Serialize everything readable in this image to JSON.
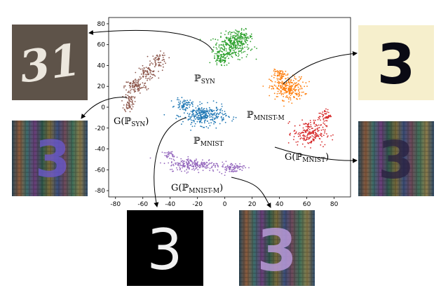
{
  "chart_data": {
    "type": "scatter",
    "title": "",
    "xlabel": "",
    "ylabel": "",
    "xlim": [
      -85,
      92
    ],
    "ylim": [
      -86,
      86
    ],
    "xticks": [
      -80,
      -60,
      -40,
      -20,
      0,
      20,
      40,
      60,
      80
    ],
    "yticks": [
      80,
      60,
      40,
      20,
      0,
      -20,
      -40,
      -60,
      -80
    ],
    "grid": false,
    "series": [
      {
        "key": "syn",
        "label_main": "ℙ",
        "label_sub": "SYN",
        "color": "#2ca02c",
        "clusters": [
          {
            "cx": 5,
            "cy": 58,
            "sx": 11,
            "sy": 10,
            "n": 240
          },
          {
            "cx": 11,
            "cy": 67,
            "sx": 8,
            "sy": 6,
            "n": 120
          },
          {
            "cx": -3,
            "cy": 46,
            "sx": 5,
            "sy": 6,
            "n": 70
          }
        ]
      },
      {
        "key": "gsyn",
        "label_main": "G(ℙ",
        "label_sub": "SYN",
        "label_close": ")",
        "color": "#8c564b",
        "clusters": [
          {
            "cx": -48,
            "cy": 45,
            "sx": 5,
            "sy": 6,
            "n": 60
          },
          {
            "cx": -57,
            "cy": 33,
            "sx": 6,
            "sy": 5,
            "n": 80
          },
          {
            "cx": -65,
            "cy": 20,
            "sx": 7,
            "sy": 6,
            "n": 110
          },
          {
            "cx": -70,
            "cy": 5,
            "sx": 3,
            "sy": 8,
            "n": 70
          }
        ]
      },
      {
        "key": "mnistm",
        "label_main": "ℙ",
        "label_sub": "MNIST-M",
        "color": "#ff7f0e",
        "clusters": [
          {
            "cx": 46,
            "cy": 18,
            "sx": 10,
            "sy": 9,
            "n": 260
          },
          {
            "cx": 41,
            "cy": 31,
            "sx": 5,
            "sy": 4,
            "n": 60
          }
        ]
      },
      {
        "key": "mnist",
        "label_main": "ℙ",
        "label_sub": "MNIST",
        "color": "#1f77b4",
        "clusters": [
          {
            "cx": -15,
            "cy": -8,
            "sx": 13,
            "sy": 8,
            "n": 300
          },
          {
            "cx": -30,
            "cy": 3,
            "sx": 5,
            "sy": 4,
            "n": 60
          }
        ]
      },
      {
        "key": "gmnist",
        "label_main": "G(ℙ",
        "label_sub": "MNIST",
        "label_close": ")",
        "color": "#d62728",
        "clusters": [
          {
            "cx": 62,
            "cy": -25,
            "sx": 10,
            "sy": 10,
            "n": 200
          },
          {
            "cx": 73,
            "cy": -8,
            "sx": 4,
            "sy": 5,
            "n": 50
          }
        ]
      },
      {
        "key": "gmnistm",
        "label_main": "G(ℙ",
        "label_sub": "MNIST-M",
        "label_close": ")",
        "color": "#9467bd",
        "clusters": [
          {
            "cx": -22,
            "cy": -55,
            "sx": 16,
            "sy": 5,
            "n": 220
          },
          {
            "cx": 5,
            "cy": -58,
            "sx": 8,
            "sy": 4,
            "n": 80
          },
          {
            "cx": -40,
            "cy": -46,
            "sx": 4,
            "sy": 3,
            "n": 30
          }
        ]
      }
    ]
  },
  "images": [
    {
      "key": "syn",
      "digits": "31",
      "bg": "#5e5349",
      "fg": "#ece7de",
      "style": "syn"
    },
    {
      "key": "mnistm",
      "digits": "3",
      "bg": "#f6efcc",
      "fg": "#0a0a14",
      "style": "mnistm"
    },
    {
      "key": "gsyn",
      "digits": "3",
      "bg": "#1b2a38",
      "fg": "#6b58c8",
      "style": "gen"
    },
    {
      "key": "gmnist",
      "digits": "3",
      "bg": "#3a3048",
      "fg": "#a77ac2",
      "style": "gen"
    },
    {
      "key": "mnist",
      "digits": "3",
      "bg": "#000000",
      "fg": "#f2f2f2",
      "style": "mnist"
    },
    {
      "key": "gmnistm",
      "digits": "3",
      "bg": "#2d2a3a",
      "fg": "#f0f0f0",
      "style": "gen"
    }
  ]
}
